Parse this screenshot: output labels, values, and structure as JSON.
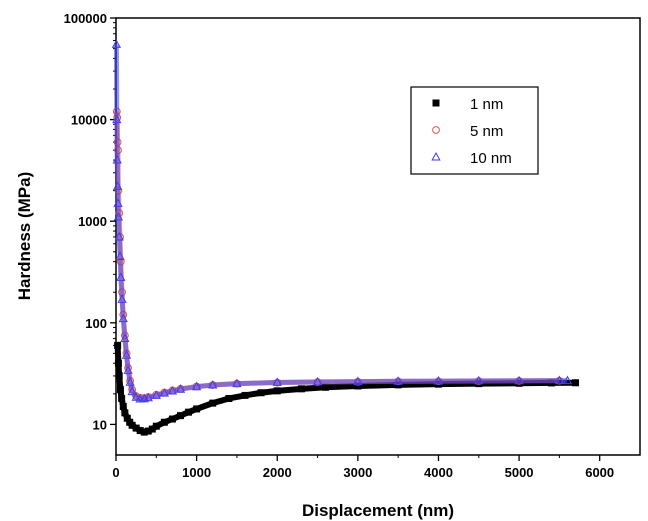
{
  "chart_data": {
    "type": "scatter",
    "title": "",
    "xlabel": "Displacement (nm)",
    "ylabel": "Hardness (MPa)",
    "xlim": [
      0,
      6500
    ],
    "ylim": [
      5,
      100000
    ],
    "yscale": "log",
    "xticks": [
      0,
      1000,
      2000,
      3000,
      4000,
      5000,
      6000
    ],
    "yticks": [
      10,
      100,
      1000,
      10000,
      100000
    ],
    "grid": false,
    "legend_position": "top-right",
    "series": [
      {
        "name": "1 nm",
        "color": "#000000",
        "marker": "square-filled",
        "x": [
          20,
          30,
          40,
          55,
          70,
          90,
          110,
          140,
          170,
          200,
          250,
          300,
          350,
          400,
          450,
          500,
          600,
          700,
          800,
          900,
          1000,
          1200,
          1400,
          1600,
          1800,
          2000,
          2300,
          2600,
          3000,
          3500,
          4000,
          4500,
          5000,
          5400,
          5700
        ],
        "y": [
          60,
          40,
          30,
          22,
          18,
          15,
          13,
          11.5,
          10.5,
          9.8,
          9.2,
          8.7,
          8.4,
          8.6,
          9.0,
          9.6,
          10.5,
          11.3,
          12.2,
          13.2,
          14.2,
          16.2,
          18.0,
          19.3,
          20.5,
          21.4,
          22.4,
          23.2,
          23.9,
          24.5,
          24.9,
          25.2,
          25.4,
          25.6,
          25.7
        ]
      },
      {
        "name": "5 nm",
        "color": "#e0554a",
        "marker": "circle-open",
        "x": [
          10,
          15,
          20,
          25,
          30,
          40,
          50,
          60,
          75,
          90,
          110,
          130,
          150,
          175,
          200,
          250,
          300,
          350,
          400,
          500,
          600,
          700,
          800,
          1000,
          1200,
          1500,
          2000,
          2500,
          3000,
          3500,
          4000,
          4500,
          5000,
          5500
        ],
        "y": [
          12000,
          10500,
          6000,
          5000,
          2000,
          1200,
          700,
          400,
          200,
          120,
          75,
          50,
          36,
          27,
          22,
          19,
          18.3,
          18.2,
          18.6,
          19.6,
          20.6,
          21.6,
          22.4,
          23.6,
          24.4,
          25.2,
          25.8,
          26.1,
          26.3,
          26.5,
          26.6,
          26.7,
          26.8,
          26.9
        ]
      },
      {
        "name": "10 nm",
        "color": "#3d3df0",
        "marker": "triangle-open",
        "x": [
          5,
          10,
          15,
          20,
          25,
          30,
          40,
          50,
          60,
          75,
          90,
          110,
          130,
          150,
          175,
          200,
          250,
          300,
          350,
          400,
          500,
          600,
          700,
          800,
          1000,
          1200,
          1500,
          2000,
          2500,
          3000,
          3500,
          4000,
          4500,
          5000,
          5500,
          5600
        ],
        "y": [
          55000,
          10000,
          4000,
          2200,
          1500,
          1100,
          700,
          450,
          280,
          170,
          110,
          70,
          48,
          34,
          26,
          21,
          18.5,
          17.8,
          17.9,
          18.3,
          19.3,
          20.3,
          21.3,
          22.2,
          23.5,
          24.4,
          25.2,
          25.9,
          26.2,
          26.4,
          26.6,
          26.7,
          26.8,
          26.9,
          27.0,
          27.0
        ]
      }
    ]
  }
}
